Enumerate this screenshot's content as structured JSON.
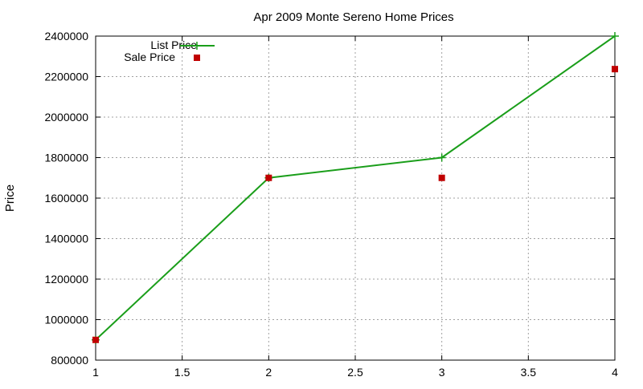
{
  "chart_data": {
    "type": "line",
    "title": "Apr 2009 Monte Sereno Home Prices",
    "xlabel": "",
    "ylabel": "Price",
    "xlim": [
      1,
      4
    ],
    "ylim": [
      800000,
      2400000
    ],
    "x_ticks": [
      1,
      1.5,
      2,
      2.5,
      3,
      3.5,
      4
    ],
    "x_tick_labels": [
      "1",
      "1.5",
      "2",
      "2.5",
      "3",
      "3.5",
      "4"
    ],
    "y_ticks": [
      800000,
      1000000,
      1200000,
      1400000,
      1600000,
      1800000,
      2000000,
      2200000,
      2400000
    ],
    "y_tick_labels": [
      "800000",
      "1000000",
      "1200000",
      "1400000",
      "1600000",
      "1800000",
      "2000000",
      "2200000",
      "2400000"
    ],
    "grid": true,
    "legend_position": "top-left",
    "series": [
      {
        "name": "List Price",
        "style": "line-with-plus-markers",
        "color": "#1a9e1a",
        "x": [
          1,
          2,
          3,
          4
        ],
        "y": [
          900000,
          1700000,
          1800000,
          2400000
        ]
      },
      {
        "name": "Sale Price",
        "style": "square-markers",
        "color": "#c00000",
        "x": [
          1,
          2,
          3,
          4
        ],
        "y": [
          900000,
          1700000,
          1700000,
          2237000
        ]
      }
    ]
  }
}
